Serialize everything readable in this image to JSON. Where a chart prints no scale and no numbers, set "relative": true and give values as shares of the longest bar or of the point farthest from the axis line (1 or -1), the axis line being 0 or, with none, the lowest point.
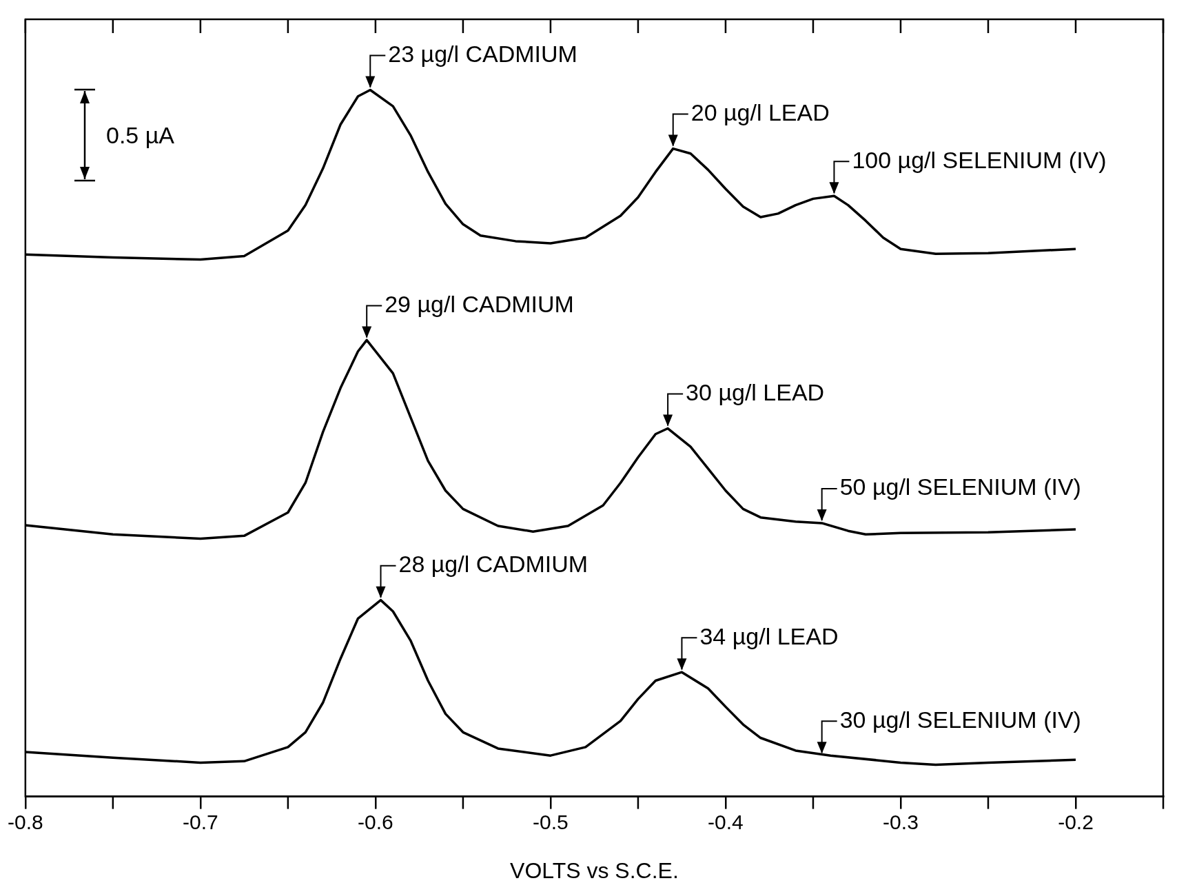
{
  "chart_data": {
    "type": "line",
    "xlabel": "VOLTS vs S.C.E.",
    "relative": true,
    "legend": false,
    "grid": false,
    "marker": "none",
    "line_style": "solid",
    "xlim": [
      -0.8,
      -0.15
    ],
    "xticks": [
      -0.8,
      -0.7,
      -0.6,
      -0.5,
      -0.4,
      -0.3,
      -0.2
    ],
    "series": [
      {
        "color": "#000000",
        "x": [
          -0.8,
          -0.75,
          -0.7,
          -0.675,
          -0.65,
          -0.64,
          -0.63,
          -0.62,
          -0.61,
          -0.603,
          -0.59,
          -0.58,
          -0.57,
          -0.56,
          -0.55,
          -0.54,
          -0.52,
          -0.5,
          -0.48,
          -0.46,
          -0.45,
          -0.44,
          -0.43,
          -0.42,
          -0.41,
          -0.4,
          -0.39,
          -0.38,
          -0.37,
          -0.36,
          -0.35,
          -0.338,
          -0.33,
          -0.32,
          -0.31,
          -0.3,
          -0.28,
          -0.25,
          -0.2
        ],
        "values": [
          0.767,
          0.763,
          0.76,
          0.765,
          0.801,
          0.837,
          0.889,
          0.951,
          0.991,
          1.0,
          0.977,
          0.936,
          0.884,
          0.839,
          0.81,
          0.794,
          0.786,
          0.783,
          0.791,
          0.822,
          0.848,
          0.884,
          0.917,
          0.91,
          0.887,
          0.86,
          0.835,
          0.82,
          0.825,
          0.837,
          0.846,
          0.85,
          0.837,
          0.815,
          0.791,
          0.775,
          0.768,
          0.769,
          0.775
        ]
      },
      {
        "color": "#000000",
        "x": [
          -0.8,
          -0.75,
          -0.7,
          -0.675,
          -0.65,
          -0.64,
          -0.63,
          -0.62,
          -0.61,
          -0.605,
          -0.59,
          -0.58,
          -0.57,
          -0.56,
          -0.55,
          -0.53,
          -0.51,
          -0.49,
          -0.47,
          -0.46,
          -0.45,
          -0.44,
          -0.433,
          -0.42,
          -0.41,
          -0.4,
          -0.39,
          -0.38,
          -0.36,
          -0.345,
          -0.33,
          -0.32,
          -0.3,
          -0.25,
          -0.2
        ],
        "values": [
          0.384,
          0.371,
          0.365,
          0.369,
          0.402,
          0.444,
          0.516,
          0.578,
          0.63,
          0.646,
          0.599,
          0.537,
          0.475,
          0.433,
          0.407,
          0.383,
          0.375,
          0.383,
          0.412,
          0.444,
          0.48,
          0.513,
          0.521,
          0.495,
          0.464,
          0.433,
          0.407,
          0.395,
          0.389,
          0.387,
          0.376,
          0.371,
          0.373,
          0.374,
          0.378
        ]
      },
      {
        "color": "#000000",
        "x": [
          -0.8,
          -0.75,
          -0.7,
          -0.675,
          -0.65,
          -0.64,
          -0.63,
          -0.62,
          -0.61,
          -0.597,
          -0.59,
          -0.58,
          -0.57,
          -0.56,
          -0.55,
          -0.53,
          -0.5,
          -0.48,
          -0.46,
          -0.45,
          -0.44,
          -0.425,
          -0.41,
          -0.4,
          -0.39,
          -0.38,
          -0.36,
          -0.34,
          -0.3,
          -0.28,
          -0.25,
          -0.2
        ],
        "values": [
          0.063,
          0.055,
          0.048,
          0.05,
          0.07,
          0.091,
          0.133,
          0.195,
          0.252,
          0.278,
          0.262,
          0.221,
          0.164,
          0.117,
          0.091,
          0.068,
          0.058,
          0.07,
          0.107,
          0.138,
          0.164,
          0.176,
          0.153,
          0.127,
          0.102,
          0.083,
          0.065,
          0.058,
          0.048,
          0.045,
          0.048,
          0.052
        ]
      }
    ],
    "annotations": [
      "0.5 µA",
      {
        "text": "23 µg/l CADMIUM",
        "x": -0.603,
        "y": 1.0
      },
      {
        "text": "20 µg/l LEAD",
        "x": -0.43,
        "y": 0.917
      },
      {
        "text": "100 µg/l SELENIUM (IV)",
        "x": -0.338,
        "y": 0.85
      },
      {
        "text": "29 µg/l CADMIUM",
        "x": -0.605,
        "y": 0.646
      },
      {
        "text": "30 µg/l LEAD",
        "x": -0.433,
        "y": 0.521
      },
      {
        "text": "50 µg/l SELENIUM (IV)",
        "x": -0.345,
        "y": 0.387
      },
      {
        "text": "28 µg/l CADMIUM",
        "x": -0.597,
        "y": 0.278
      },
      {
        "text": "34 µg/l LEAD",
        "x": -0.425,
        "y": 0.176
      },
      {
        "text": "30 µg/l SELENIUM (IV)",
        "x": -0.345,
        "y": 0.058
      }
    ]
  }
}
